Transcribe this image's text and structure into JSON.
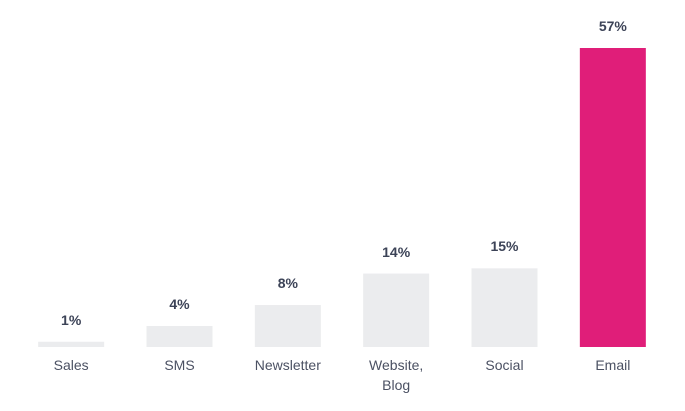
{
  "chart_data": {
    "type": "bar",
    "categories": [
      "Sales",
      "SMS",
      "Newsletter",
      "Website, Blog",
      "Social",
      "Email"
    ],
    "values": [
      1,
      4,
      8,
      14,
      15,
      57
    ],
    "value_labels": [
      "1%",
      "4%",
      "8%",
      "14%",
      "15%",
      "57%"
    ],
    "colors": [
      "#ebecee",
      "#ebecee",
      "#ebecee",
      "#ebecee",
      "#ebecee",
      "#e01e79"
    ]
  }
}
